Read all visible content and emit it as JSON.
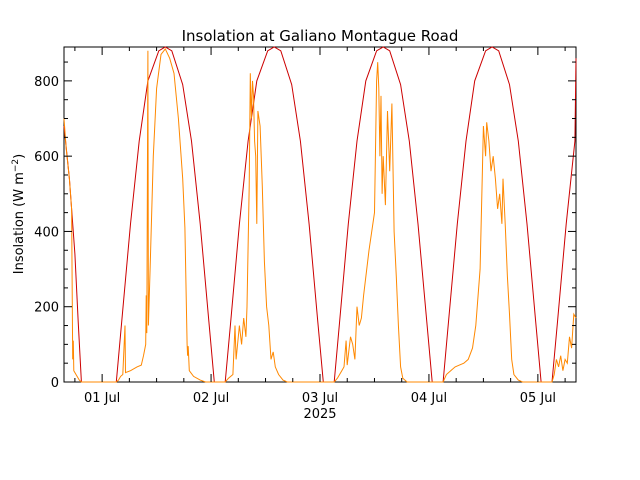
{
  "chart_data": {
    "type": "line",
    "title": "Insolation at Galiano Montague Road",
    "ylabel_main": "Insolation (W m",
    "ylabel_sup": "−2",
    "ylabel_close": ")",
    "xlabel": "2025",
    "ylim": [
      0,
      890
    ],
    "xlim": [
      -0.35,
      4.35
    ],
    "yticks": [
      0,
      200,
      400,
      600,
      800
    ],
    "xticks": [
      {
        "value": 0,
        "label": "01 Jul"
      },
      {
        "value": 1,
        "label": "02 Jul"
      },
      {
        "value": 2,
        "label": "03 Jul"
      },
      {
        "value": 3,
        "label": "04 Jul"
      },
      {
        "value": 4,
        "label": "05 Jul"
      }
    ],
    "grid": false,
    "colors": {
      "clear_sky": "#cc0000",
      "measured": "#ff8800"
    },
    "clear_sky": {
      "description_days": [
        -0.35,
        0.6,
        1.6,
        2.6,
        3.6,
        4.35
      ],
      "peak": 890,
      "points": [
        [
          -0.35,
          680
        ],
        [
          -0.3,
          540
        ],
        [
          -0.25,
          340
        ],
        [
          -0.22,
          160
        ],
        [
          -0.19,
          0
        ],
        [
          0.13,
          0
        ],
        [
          0.18,
          160
        ],
        [
          0.26,
          420
        ],
        [
          0.34,
          640
        ],
        [
          0.42,
          800
        ],
        [
          0.52,
          880
        ],
        [
          0.58,
          893
        ],
        [
          0.64,
          880
        ],
        [
          0.74,
          790
        ],
        [
          0.82,
          640
        ],
        [
          0.9,
          420
        ],
        [
          0.98,
          160
        ],
        [
          1.03,
          0
        ],
        [
          1.13,
          0
        ],
        [
          1.18,
          160
        ],
        [
          1.26,
          420
        ],
        [
          1.34,
          640
        ],
        [
          1.42,
          800
        ],
        [
          1.52,
          880
        ],
        [
          1.58,
          893
        ],
        [
          1.64,
          880
        ],
        [
          1.74,
          790
        ],
        [
          1.82,
          640
        ],
        [
          1.9,
          420
        ],
        [
          1.98,
          160
        ],
        [
          2.03,
          0
        ],
        [
          2.13,
          0
        ],
        [
          2.18,
          160
        ],
        [
          2.26,
          420
        ],
        [
          2.34,
          640
        ],
        [
          2.42,
          800
        ],
        [
          2.52,
          880
        ],
        [
          2.58,
          893
        ],
        [
          2.64,
          880
        ],
        [
          2.74,
          790
        ],
        [
          2.82,
          640
        ],
        [
          2.9,
          420
        ],
        [
          2.98,
          160
        ],
        [
          3.03,
          0
        ],
        [
          3.13,
          0
        ],
        [
          3.18,
          160
        ],
        [
          3.26,
          420
        ],
        [
          3.34,
          640
        ],
        [
          3.42,
          800
        ],
        [
          3.52,
          880
        ],
        [
          3.58,
          893
        ],
        [
          3.64,
          880
        ],
        [
          3.74,
          790
        ],
        [
          3.82,
          640
        ],
        [
          3.9,
          420
        ],
        [
          3.98,
          160
        ],
        [
          4.03,
          0
        ],
        [
          4.13,
          0
        ],
        [
          4.18,
          160
        ],
        [
          4.26,
          420
        ],
        [
          4.34,
          640
        ],
        [
          4.35,
          860
        ]
      ]
    },
    "measured": {
      "points": [
        [
          -0.35,
          700
        ],
        [
          -0.33,
          620
        ],
        [
          -0.3,
          540
        ],
        [
          -0.28,
          460
        ],
        [
          -0.27,
          60
        ],
        [
          -0.265,
          110
        ],
        [
          -0.26,
          30
        ],
        [
          -0.24,
          20
        ],
        [
          -0.21,
          5
        ],
        [
          -0.19,
          0
        ],
        [
          0.13,
          0
        ],
        [
          0.15,
          5
        ],
        [
          0.17,
          15
        ],
        [
          0.19,
          20
        ],
        [
          0.21,
          150
        ],
        [
          0.215,
          25
        ],
        [
          0.26,
          30
        ],
        [
          0.32,
          40
        ],
        [
          0.36,
          45
        ],
        [
          0.38,
          70
        ],
        [
          0.4,
          100
        ],
        [
          0.405,
          230
        ],
        [
          0.41,
          130
        ],
        [
          0.42,
          880
        ],
        [
          0.425,
          150
        ],
        [
          0.44,
          300
        ],
        [
          0.47,
          600
        ],
        [
          0.5,
          780
        ],
        [
          0.54,
          870
        ],
        [
          0.58,
          885
        ],
        [
          0.62,
          860
        ],
        [
          0.66,
          820
        ],
        [
          0.7,
          700
        ],
        [
          0.74,
          540
        ],
        [
          0.76,
          410
        ],
        [
          0.78,
          100
        ],
        [
          0.785,
          70
        ],
        [
          0.79,
          95
        ],
        [
          0.8,
          30
        ],
        [
          0.84,
          15
        ],
        [
          0.9,
          5
        ],
        [
          0.95,
          0
        ],
        [
          1.13,
          0
        ],
        [
          1.16,
          10
        ],
        [
          1.2,
          20
        ],
        [
          1.22,
          150
        ],
        [
          1.23,
          60
        ],
        [
          1.26,
          150
        ],
        [
          1.28,
          100
        ],
        [
          1.3,
          170
        ],
        [
          1.32,
          120
        ],
        [
          1.33,
          200
        ],
        [
          1.35,
          520
        ],
        [
          1.36,
          820
        ],
        [
          1.37,
          700
        ],
        [
          1.38,
          800
        ],
        [
          1.39,
          760
        ],
        [
          1.4,
          640
        ],
        [
          1.41,
          600
        ],
        [
          1.42,
          420
        ],
        [
          1.43,
          720
        ],
        [
          1.45,
          680
        ],
        [
          1.47,
          520
        ],
        [
          1.49,
          320
        ],
        [
          1.51,
          200
        ],
        [
          1.53,
          150
        ],
        [
          1.55,
          60
        ],
        [
          1.57,
          80
        ],
        [
          1.59,
          40
        ],
        [
          1.62,
          20
        ],
        [
          1.66,
          5
        ],
        [
          1.7,
          0
        ],
        [
          2.13,
          0
        ],
        [
          2.16,
          10
        ],
        [
          2.2,
          30
        ],
        [
          2.22,
          40
        ],
        [
          2.24,
          110
        ],
        [
          2.25,
          45
        ],
        [
          2.28,
          120
        ],
        [
          2.3,
          100
        ],
        [
          2.32,
          60
        ],
        [
          2.34,
          200
        ],
        [
          2.36,
          150
        ],
        [
          2.38,
          170
        ],
        [
          2.4,
          230
        ],
        [
          2.45,
          350
        ],
        [
          2.5,
          450
        ],
        [
          2.52,
          800
        ],
        [
          2.53,
          850
        ],
        [
          2.54,
          780
        ],
        [
          2.55,
          600
        ],
        [
          2.56,
          760
        ],
        [
          2.57,
          500
        ],
        [
          2.58,
          600
        ],
        [
          2.6,
          470
        ],
        [
          2.62,
          720
        ],
        [
          2.64,
          560
        ],
        [
          2.66,
          740
        ],
        [
          2.68,
          400
        ],
        [
          2.7,
          280
        ],
        [
          2.72,
          150
        ],
        [
          2.74,
          40
        ],
        [
          2.76,
          10
        ],
        [
          2.8,
          0
        ],
        [
          3.13,
          0
        ],
        [
          3.16,
          20
        ],
        [
          3.2,
          30
        ],
        [
          3.24,
          40
        ],
        [
          3.28,
          45
        ],
        [
          3.32,
          50
        ],
        [
          3.36,
          60
        ],
        [
          3.4,
          90
        ],
        [
          3.43,
          150
        ],
        [
          3.47,
          300
        ],
        [
          3.49,
          550
        ],
        [
          3.5,
          680
        ],
        [
          3.52,
          600
        ],
        [
          3.53,
          690
        ],
        [
          3.55,
          640
        ],
        [
          3.57,
          560
        ],
        [
          3.59,
          600
        ],
        [
          3.61,
          540
        ],
        [
          3.63,
          460
        ],
        [
          3.65,
          500
        ],
        [
          3.67,
          420
        ],
        [
          3.68,
          540
        ],
        [
          3.7,
          420
        ],
        [
          3.72,
          280
        ],
        [
          3.74,
          180
        ],
        [
          3.76,
          60
        ],
        [
          3.78,
          20
        ],
        [
          3.82,
          5
        ],
        [
          3.86,
          0
        ],
        [
          4.13,
          0
        ],
        [
          4.15,
          20
        ],
        [
          4.17,
          60
        ],
        [
          4.19,
          40
        ],
        [
          4.21,
          70
        ],
        [
          4.23,
          30
        ],
        [
          4.25,
          60
        ],
        [
          4.27,
          50
        ],
        [
          4.29,
          120
        ],
        [
          4.31,
          90
        ],
        [
          4.33,
          180
        ],
        [
          4.35,
          170
        ]
      ]
    }
  }
}
